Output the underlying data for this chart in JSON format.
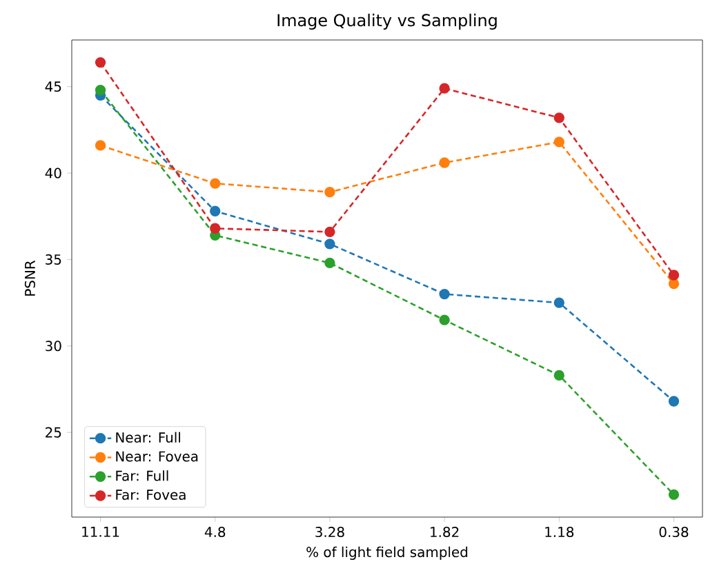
{
  "chart_data": {
    "type": "line",
    "title": "Image Quality vs Sampling",
    "xlabel": "% of light field sampled",
    "ylabel": "PSNR",
    "categories": [
      "11.11",
      "4.8",
      "3.28",
      "1.82",
      "1.18",
      "0.38"
    ],
    "series": [
      {
        "name": "Near: Full",
        "color": "#1f77b4",
        "values": [
          44.5,
          37.8,
          35.9,
          33.0,
          32.5,
          26.8
        ]
      },
      {
        "name": "Near: Fovea",
        "color": "#ff7f0e",
        "values": [
          41.6,
          39.4,
          38.9,
          40.6,
          41.8,
          33.6
        ]
      },
      {
        "name": "Far: Full",
        "color": "#2ca02c",
        "values": [
          44.8,
          36.4,
          34.8,
          31.5,
          28.3,
          21.4
        ]
      },
      {
        "name": "Far: Fovea",
        "color": "#d62728",
        "values": [
          46.4,
          36.8,
          36.6,
          44.9,
          43.2,
          34.1
        ]
      }
    ],
    "ylim": [
      20.1,
      47.7
    ],
    "yticks": [
      25,
      30,
      35,
      40,
      45
    ],
    "legend": "bottom left",
    "marker": "circle",
    "line_style": "dashed",
    "grid": false
  }
}
